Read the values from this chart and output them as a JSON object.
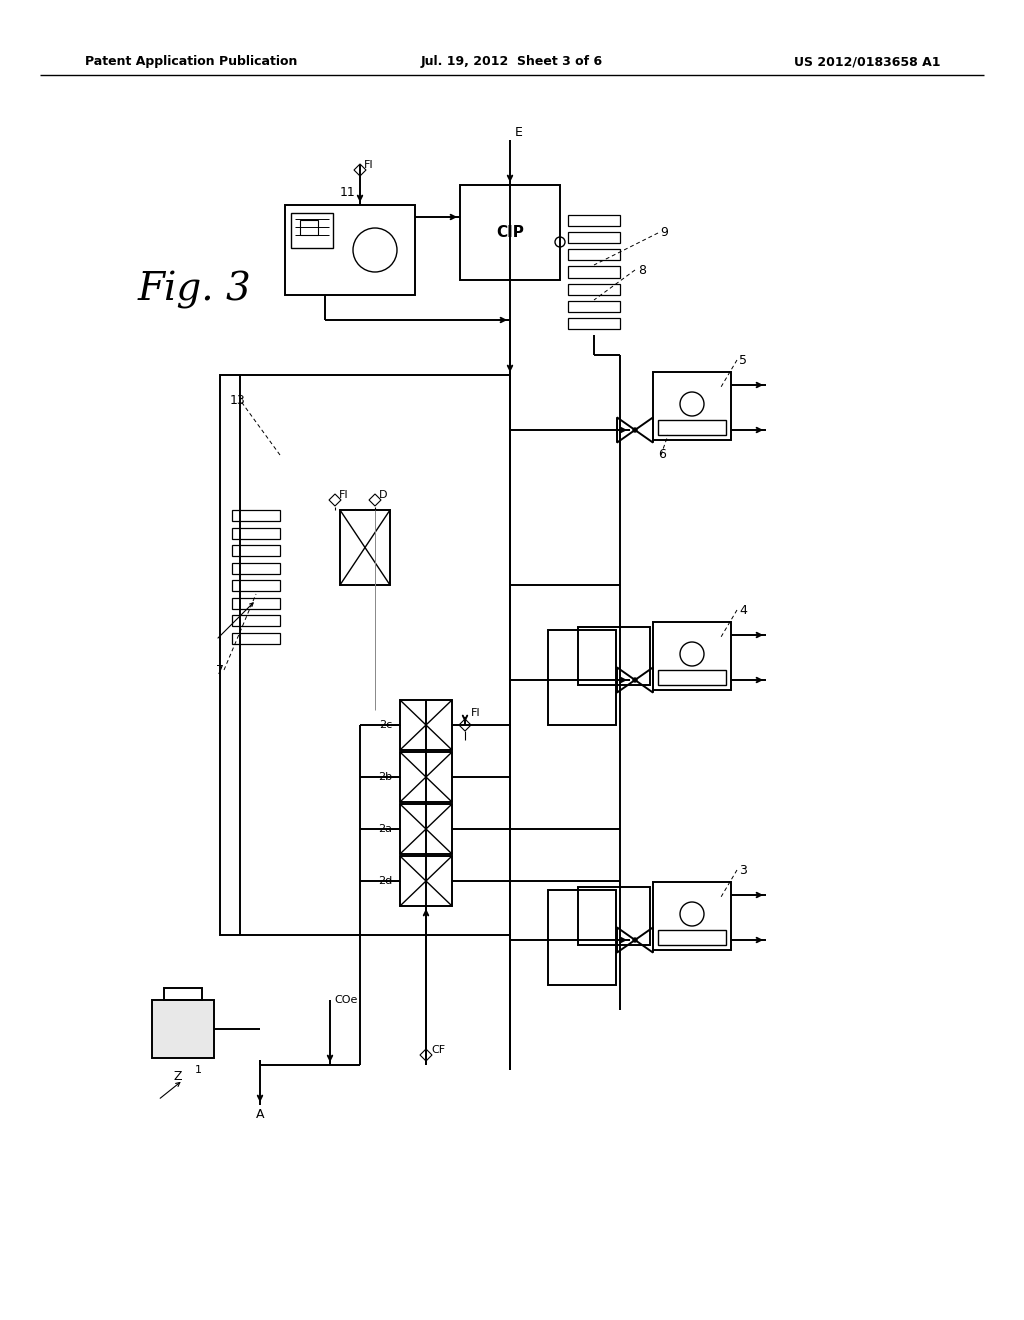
{
  "header_left": "Patent Application Publication",
  "header_center": "Jul. 19, 2012  Sheet 3 of 6",
  "header_right": "US 2012/0183658 A1",
  "bg": "#ffffff"
}
